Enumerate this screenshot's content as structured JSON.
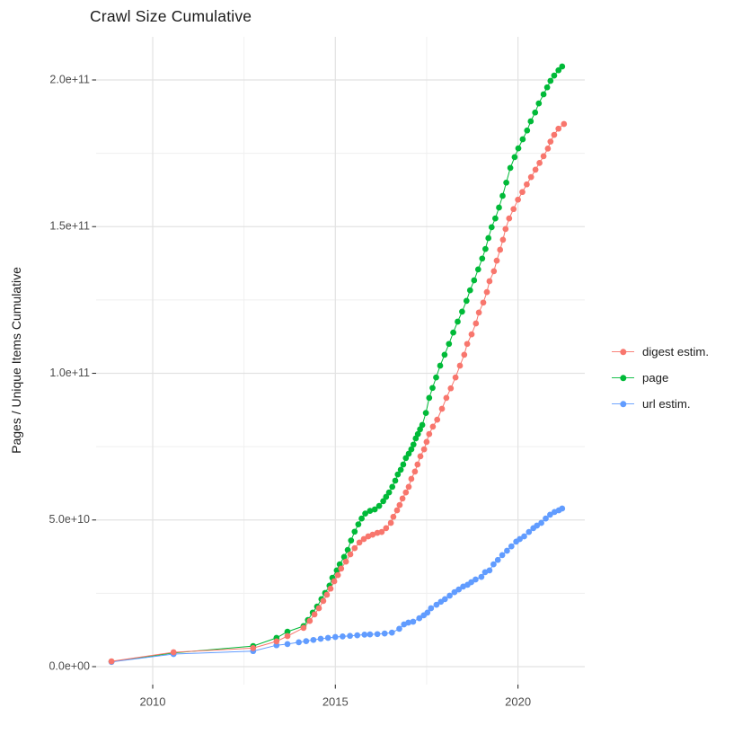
{
  "title": "Crawl Size Cumulative",
  "y_axis": {
    "label": "Pages / Unique Items Cumulative",
    "tick_labels": [
      "0.0e+00",
      "5.0e+10",
      "1.0e+11",
      "1.5e+11",
      "2.0e+11"
    ],
    "tick_values": [
      0,
      50000000000.0,
      100000000000.0,
      150000000000.0,
      200000000000.0
    ]
  },
  "x_axis": {
    "label": "",
    "tick_labels": [
      "2010",
      "2015",
      "2020"
    ],
    "tick_values": [
      2010,
      2015,
      2020
    ]
  },
  "legend": [
    {
      "label": "digest estim.",
      "color": "#F8766D"
    },
    {
      "label": "page",
      "color": "#00BA38"
    },
    {
      "label": "url estim.",
      "color": "#619CFF"
    }
  ],
  "chart_data": {
    "type": "scatter",
    "title": "Crawl Size Cumulative",
    "xlabel": "",
    "ylabel": "Pages / Unique Items Cumulative",
    "x_ticks": [
      2010,
      2015,
      2020
    ],
    "y_ticks": [
      0,
      50000000000.0,
      100000000000.0,
      150000000000.0,
      200000000000.0
    ],
    "xlim": [
      2008.45,
      2021.85
    ],
    "ylim": [
      0,
      215000000000.0
    ],
    "grid": "major+minor",
    "legend_position": "right",
    "series": [
      {
        "name": "digest estim.",
        "color": "#F8766D",
        "points": [
          [
            2008.87,
            1800000000.0
          ],
          [
            2010.57,
            4900000000.0
          ],
          [
            2012.75,
            6300000000.0
          ],
          [
            2013.39,
            8600000000.0
          ],
          [
            2013.69,
            10400000000.0
          ],
          [
            2014.13,
            13200000000.0
          ],
          [
            2014.3,
            15600000000.0
          ],
          [
            2014.43,
            17800000000.0
          ],
          [
            2014.55,
            19900000000.0
          ],
          [
            2014.67,
            22400000000.0
          ],
          [
            2014.77,
            24500000000.0
          ],
          [
            2014.87,
            26600000000.0
          ],
          [
            2014.97,
            29100000000.0
          ],
          [
            2015.07,
            31200000000.0
          ],
          [
            2015.16,
            33400000000.0
          ],
          [
            2015.29,
            35800000000.0
          ],
          [
            2015.41,
            38300000000.0
          ],
          [
            2015.53,
            40400000000.0
          ],
          [
            2015.66,
            42300000000.0
          ],
          [
            2015.78,
            43500000000.0
          ],
          [
            2015.9,
            44400000000.0
          ],
          [
            2016.02,
            45000000000.0
          ],
          [
            2016.15,
            45600000000.0
          ],
          [
            2016.27,
            45900000000.0
          ],
          [
            2016.39,
            47200000000.0
          ],
          [
            2016.52,
            49000000000.0
          ],
          [
            2016.59,
            51100000000.0
          ],
          [
            2016.69,
            53300000000.0
          ],
          [
            2016.76,
            55100000000.0
          ],
          [
            2016.84,
            57300000000.0
          ],
          [
            2016.93,
            59400000000.0
          ],
          [
            2017.01,
            61300000000.0
          ],
          [
            2017.08,
            64000000000.0
          ],
          [
            2017.18,
            66500000000.0
          ],
          [
            2017.25,
            68900000000.0
          ],
          [
            2017.33,
            71700000000.0
          ],
          [
            2017.43,
            74100000000.0
          ],
          [
            2017.5,
            76600000000.0
          ],
          [
            2017.57,
            79300000000.0
          ],
          [
            2017.67,
            81800000000.0
          ],
          [
            2017.79,
            84200000000.0
          ],
          [
            2017.92,
            87900000000.0
          ],
          [
            2018.04,
            91600000000.0
          ],
          [
            2018.16,
            94900000000.0
          ],
          [
            2018.29,
            98600000000.0
          ],
          [
            2018.41,
            102600000000.0
          ],
          [
            2018.53,
            106300000000.0
          ],
          [
            2018.61,
            110000000000.0
          ],
          [
            2018.73,
            113300000000.0
          ],
          [
            2018.85,
            117000000000.0
          ],
          [
            2018.93,
            120700000000.0
          ],
          [
            2019.05,
            124100000000.0
          ],
          [
            2019.15,
            127700000000.0
          ],
          [
            2019.22,
            131400000000.0
          ],
          [
            2019.34,
            134800000000.0
          ],
          [
            2019.42,
            138400000000.0
          ],
          [
            2019.51,
            142100000000.0
          ],
          [
            2019.59,
            145500000000.0
          ],
          [
            2019.66,
            149200000000.0
          ],
          [
            2019.76,
            152800000000.0
          ],
          [
            2019.88,
            156000000000.0
          ],
          [
            2020.0,
            159200000000.0
          ],
          [
            2020.12,
            161800000000.0
          ],
          [
            2020.24,
            164400000000.0
          ],
          [
            2020.36,
            166900000000.0
          ],
          [
            2020.48,
            169400000000.0
          ],
          [
            2020.59,
            171700000000.0
          ],
          [
            2020.7,
            174000000000.0
          ],
          [
            2020.82,
            176600000000.0
          ],
          [
            2020.89,
            179000000000.0
          ],
          [
            2020.99,
            181300000000.0
          ],
          [
            2021.11,
            183400000000.0
          ],
          [
            2021.26,
            185000000000.0
          ]
        ]
      },
      {
        "name": "page",
        "color": "#00BA38",
        "points": [
          [
            2008.87,
            1700000000.0
          ],
          [
            2010.57,
            4700000000.0
          ],
          [
            2012.75,
            7000000000.0
          ],
          [
            2013.39,
            9800000000.0
          ],
          [
            2013.69,
            11900000000.0
          ],
          [
            2014.13,
            13800000000.0
          ],
          [
            2014.25,
            15900000000.0
          ],
          [
            2014.38,
            18400000000.0
          ],
          [
            2014.5,
            20500000000.0
          ],
          [
            2014.62,
            23000000000.0
          ],
          [
            2014.72,
            25100000000.0
          ],
          [
            2014.84,
            27600000000.0
          ],
          [
            2014.92,
            30300000000.0
          ],
          [
            2015.04,
            32800000000.0
          ],
          [
            2015.12,
            34900000000.0
          ],
          [
            2015.24,
            37400000000.0
          ],
          [
            2015.34,
            39800000000.0
          ],
          [
            2015.43,
            43000000000.0
          ],
          [
            2015.53,
            46000000000.0
          ],
          [
            2015.63,
            48500000000.0
          ],
          [
            2015.72,
            50500000000.0
          ],
          [
            2015.82,
            52200000000.0
          ],
          [
            2015.95,
            53100000000.0
          ],
          [
            2016.08,
            53600000000.0
          ],
          [
            2016.2,
            54800000000.0
          ],
          [
            2016.31,
            56400000000.0
          ],
          [
            2016.39,
            57900000000.0
          ],
          [
            2016.47,
            59400000000.0
          ],
          [
            2016.56,
            61300000000.0
          ],
          [
            2016.64,
            63400000000.0
          ],
          [
            2016.71,
            65500000000.0
          ],
          [
            2016.79,
            67100000000.0
          ],
          [
            2016.86,
            68900000000.0
          ],
          [
            2016.93,
            71100000000.0
          ],
          [
            2017.01,
            72600000000.0
          ],
          [
            2017.08,
            74100000000.0
          ],
          [
            2017.14,
            75700000000.0
          ],
          [
            2017.2,
            77800000000.0
          ],
          [
            2017.26,
            79300000000.0
          ],
          [
            2017.32,
            80900000000.0
          ],
          [
            2017.38,
            82400000000.0
          ],
          [
            2017.48,
            86500000000.0
          ],
          [
            2017.57,
            91600000000.0
          ],
          [
            2017.66,
            95000000000.0
          ],
          [
            2017.76,
            98600000000.0
          ],
          [
            2017.87,
            102600000000.0
          ],
          [
            2017.99,
            106300000000.0
          ],
          [
            2018.11,
            110000000000.0
          ],
          [
            2018.23,
            113900000000.0
          ],
          [
            2018.35,
            117600000000.0
          ],
          [
            2018.47,
            121000000000.0
          ],
          [
            2018.59,
            124700000000.0
          ],
          [
            2018.69,
            128300000000.0
          ],
          [
            2018.8,
            131700000000.0
          ],
          [
            2018.91,
            135400000000.0
          ],
          [
            2019.02,
            139100000000.0
          ],
          [
            2019.11,
            142400000000.0
          ],
          [
            2019.19,
            146100000000.0
          ],
          [
            2019.28,
            149800000000.0
          ],
          [
            2019.38,
            152800000000.0
          ],
          [
            2019.48,
            156500000000.0
          ],
          [
            2019.58,
            160500000000.0
          ],
          [
            2019.68,
            165000000000.0
          ],
          [
            2019.79,
            170000000000.0
          ],
          [
            2019.91,
            173700000000.0
          ],
          [
            2020.01,
            176700000000.0
          ],
          [
            2020.13,
            179800000000.0
          ],
          [
            2020.25,
            182800000000.0
          ],
          [
            2020.35,
            185900000000.0
          ],
          [
            2020.47,
            188900000000.0
          ],
          [
            2020.57,
            192000000000.0
          ],
          [
            2020.7,
            195100000000.0
          ],
          [
            2020.8,
            197500000000.0
          ],
          [
            2020.89,
            199700000000.0
          ],
          [
            2020.99,
            201500000000.0
          ],
          [
            2021.11,
            203300000000.0
          ],
          [
            2021.21,
            204600000000.0
          ]
        ]
      },
      {
        "name": "url estim.",
        "color": "#619CFF",
        "points": [
          [
            2008.87,
            1600000000.0
          ],
          [
            2010.57,
            4300000000.0
          ],
          [
            2012.75,
            5300000000.0
          ],
          [
            2013.39,
            7300000000.0
          ],
          [
            2013.69,
            7700000000.0
          ],
          [
            2014.0,
            8300000000.0
          ],
          [
            2014.2,
            8700000000.0
          ],
          [
            2014.4,
            9100000000.0
          ],
          [
            2014.6,
            9500000000.0
          ],
          [
            2014.8,
            9800000000.0
          ],
          [
            2015.0,
            10100000000.0
          ],
          [
            2015.2,
            10300000000.0
          ],
          [
            2015.4,
            10500000000.0
          ],
          [
            2015.6,
            10700000000.0
          ],
          [
            2015.8,
            10900000000.0
          ],
          [
            2015.95,
            11000000000.0
          ],
          [
            2016.15,
            11100000000.0
          ],
          [
            2016.35,
            11300000000.0
          ],
          [
            2016.55,
            11600000000.0
          ],
          [
            2016.75,
            12900000000.0
          ],
          [
            2016.88,
            14400000000.0
          ],
          [
            2017.0,
            15000000000.0
          ],
          [
            2017.13,
            15300000000.0
          ],
          [
            2017.3,
            16500000000.0
          ],
          [
            2017.42,
            17500000000.0
          ],
          [
            2017.52,
            18400000000.0
          ],
          [
            2017.62,
            19900000000.0
          ],
          [
            2017.77,
            21100000000.0
          ],
          [
            2017.89,
            22100000000.0
          ],
          [
            2018.0,
            23000000000.0
          ],
          [
            2018.13,
            24200000000.0
          ],
          [
            2018.26,
            25400000000.0
          ],
          [
            2018.38,
            26300000000.0
          ],
          [
            2018.5,
            27300000000.0
          ],
          [
            2018.62,
            27900000000.0
          ],
          [
            2018.72,
            28800000000.0
          ],
          [
            2018.84,
            29700000000.0
          ],
          [
            2019.0,
            30600000000.0
          ],
          [
            2019.1,
            32200000000.0
          ],
          [
            2019.22,
            32800000000.0
          ],
          [
            2019.33,
            34900000000.0
          ],
          [
            2019.45,
            36400000000.0
          ],
          [
            2019.57,
            38000000000.0
          ],
          [
            2019.7,
            39500000000.0
          ],
          [
            2019.82,
            41000000000.0
          ],
          [
            2019.95,
            42600000000.0
          ],
          [
            2020.05,
            43500000000.0
          ],
          [
            2020.17,
            44400000000.0
          ],
          [
            2020.3,
            45900000000.0
          ],
          [
            2020.42,
            47200000000.0
          ],
          [
            2020.52,
            48100000000.0
          ],
          [
            2020.64,
            49000000000.0
          ],
          [
            2020.76,
            50500000000.0
          ],
          [
            2020.88,
            51800000000.0
          ],
          [
            2021.0,
            52700000000.0
          ],
          [
            2021.12,
            53300000000.0
          ],
          [
            2021.21,
            53900000000.0
          ]
        ]
      }
    ]
  }
}
